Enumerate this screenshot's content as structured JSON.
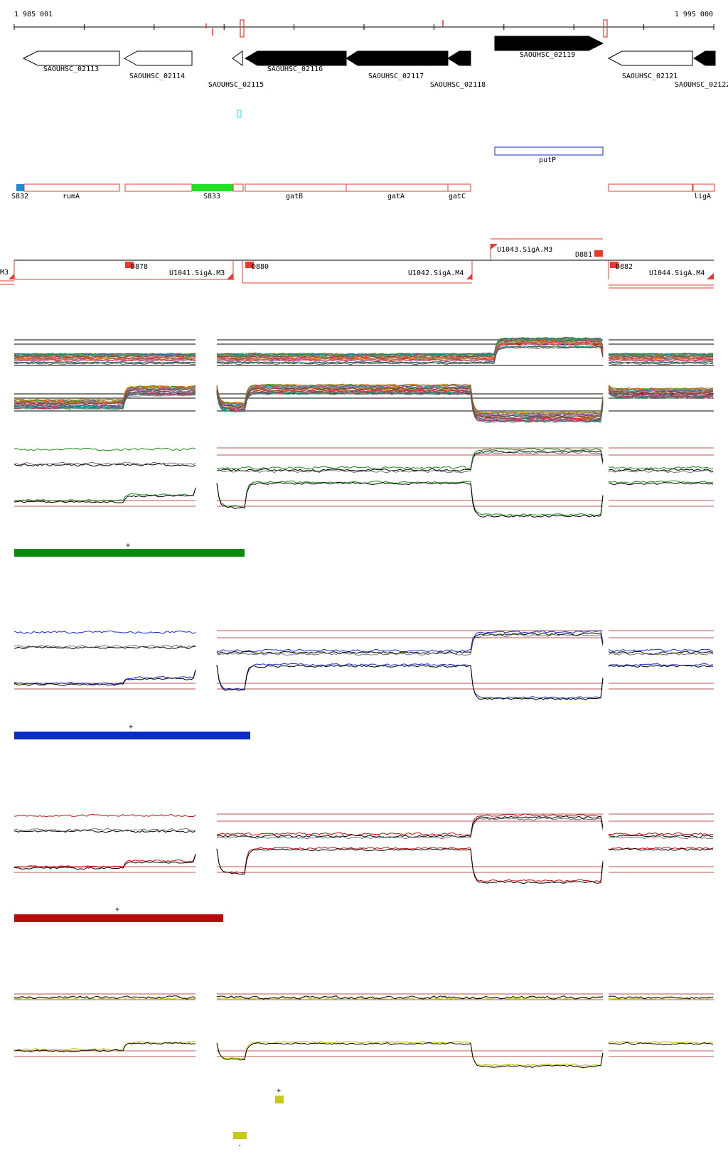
{
  "coords": {
    "start": "1 985 001",
    "end": "1 995 000"
  },
  "colors": {
    "gene_fill": "#000000",
    "gene_outline": "#000000",
    "region_red": "#e8392c",
    "region_blue": "#1a24c8",
    "bar_green": "#0a8a0a",
    "bar_blue": "#0a2bc8",
    "bar_red": "#b80c0c",
    "bar_yellow": "#c8c81a",
    "cyan_mark": "#22e0f0"
  },
  "genes": [
    {
      "label": "SAOUHSC_02113",
      "strand": "-",
      "filled": false
    },
    {
      "label": "SAOUHSC_02114",
      "strand": "-",
      "filled": false
    },
    {
      "label": "SAOUHSC_02115",
      "strand": "-",
      "filled": false
    },
    {
      "label": "SAOUHSC_02116",
      "strand": "-",
      "filled": true
    },
    {
      "label": "SAOUHSC_02117",
      "strand": "-",
      "filled": true
    },
    {
      "label": "SAOUHSC_02118",
      "strand": "-",
      "filled": true
    },
    {
      "label": "SAOUHSC_02119",
      "strand": "+",
      "filled": true
    },
    {
      "label": "SAOUHSC_02121",
      "strand": "-",
      "filled": false
    },
    {
      "label": "SAOUHSC_02122",
      "strand": "-",
      "filled": true
    }
  ],
  "plus_features": [
    {
      "label": "putP"
    }
  ],
  "minus_features": [
    {
      "label": "S832"
    },
    {
      "label": "rumA"
    },
    {
      "label": "S833"
    },
    {
      "label": "gatB"
    },
    {
      "label": "gatA"
    },
    {
      "label": "gatC"
    },
    {
      "label": "ligA"
    }
  ],
  "transcripts": [
    {
      "label": "M3"
    },
    {
      "label": "D878"
    },
    {
      "label": "U1041.SigA.M3"
    },
    {
      "label": "D880"
    },
    {
      "label": "U1042.SigA.M4"
    },
    {
      "label": "U1043.SigA.M3"
    },
    {
      "label": "D881"
    },
    {
      "label": "D882"
    },
    {
      "label": "U1044.SigA.M4"
    }
  ],
  "condition_panels": [
    {
      "name": "green",
      "color": "#1a8a1a",
      "strand_sign": "+"
    },
    {
      "name": "blue",
      "color": "#1a2bc8",
      "strand_sign": "+"
    },
    {
      "name": "red",
      "color": "#c00c0c",
      "strand_sign": "+"
    },
    {
      "name": "yellow",
      "color": "#c8c81a",
      "strand_sign_top": "+",
      "strand_sign_bottom": "-"
    }
  ]
}
